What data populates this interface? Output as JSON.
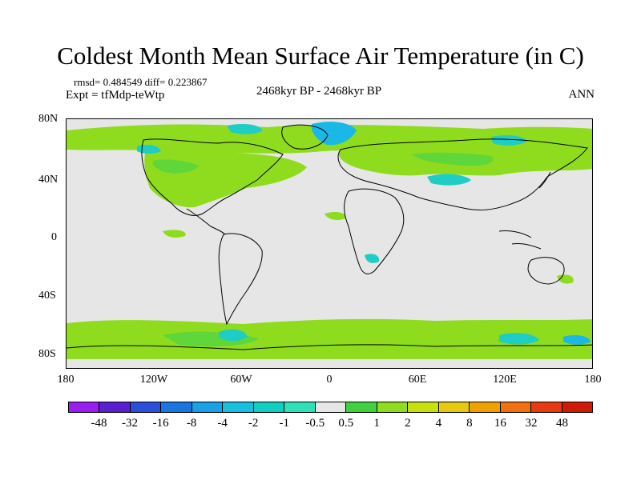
{
  "title": "Coldest Month Mean Surface Air Temperature (in C)",
  "stats": "rmsd= 0.484549 diff= 0.223867",
  "experiment": "Expt = tfMdp-teWtp",
  "period": "2468kyr BP - 2468kyr BP",
  "season": "ANN",
  "lat_labels": [
    "80N",
    "40N",
    "0",
    "40S",
    "80S"
  ],
  "lon_labels": [
    "180",
    "120W",
    "60W",
    "0",
    "60E",
    "120E",
    "180"
  ],
  "colorbar": {
    "labels": [
      "-48",
      "-32",
      "-16",
      "-8",
      "-4",
      "-2",
      "-1",
      "-0.5",
      "0.5",
      "1",
      "2",
      "4",
      "8",
      "16",
      "32",
      "48"
    ],
    "colors": [
      "#9a1cf0",
      "#5b1fd2",
      "#2a4fd8",
      "#1976e0",
      "#1aa0e6",
      "#18c0e0",
      "#10cfc0",
      "#30e0b8",
      "#e6e6e6",
      "#40d040",
      "#90dd20",
      "#c8e010",
      "#e8c810",
      "#f0a000",
      "#f07010",
      "#e83a10",
      "#d01a08"
    ]
  },
  "colors": {
    "land_outline": "#000000",
    "neutral": "#e6e6e6",
    "pos_small": "#8fdc1e",
    "pos_light": "#5fd63a",
    "neg_small": "#1ecdc4",
    "neg_mid": "#1ab8e6"
  }
}
